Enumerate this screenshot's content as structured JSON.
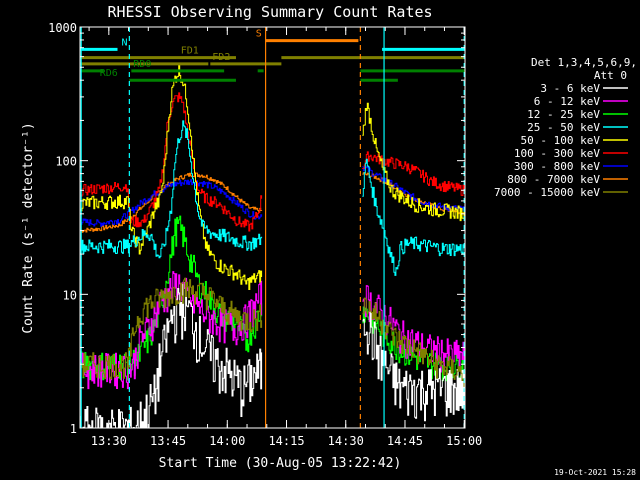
{
  "chart_data": {
    "type": "line",
    "title": "RHESSI Observing Summary Count Rates",
    "xlabel": "Start Time (30-Aug-05 13:22:42)",
    "ylabel": "Count Rate (s⁻¹ detector⁻¹)",
    "yscale": "log",
    "ylim": [
      1,
      1000
    ],
    "xlim_minutes": [
      0,
      97.5
    ],
    "x_start": "13:22:42",
    "x_ticks": [
      {
        "label": "13:30",
        "t": 7.3
      },
      {
        "label": "13:45",
        "t": 22.3
      },
      {
        "label": "14:00",
        "t": 37.3
      },
      {
        "label": "14:15",
        "t": 52.3
      },
      {
        "label": "14:30",
        "t": 67.3
      },
      {
        "label": "14:45",
        "t": 82.3
      },
      {
        "label": "15:00",
        "t": 97.3
      }
    ],
    "y_ticks": [
      {
        "label": "1",
        "v": 1
      },
      {
        "label": "10",
        "v": 10
      },
      {
        "label": "100",
        "v": 100
      },
      {
        "label": "1000",
        "v": 1000
      }
    ],
    "legend_header": [
      "Det 1,3,4,5,6,9,",
      "Att 0"
    ],
    "legend_position": "right",
    "footer_date": "19-Oct-2021 15:28",
    "data_gap_minutes": [
      46.5,
      71.0
    ],
    "series": [
      {
        "name": "3 - 6 keV",
        "color": "#ffffff",
        "t": [
          0,
          12,
          13.5,
          16,
          19,
          20,
          22,
          23,
          24,
          25,
          26,
          27,
          28,
          29,
          30,
          31,
          32,
          33,
          34,
          35,
          37,
          38,
          40,
          41,
          44,
          46
        ],
        "v": [
          1,
          1,
          1,
          1.2,
          1.8,
          3,
          5,
          6.5,
          7.5,
          8,
          8.5,
          8,
          7,
          6,
          5,
          4.5,
          4,
          3.5,
          3.3,
          3,
          2.8,
          2.5,
          2.2,
          2,
          2.5,
          2.8
        ]
      },
      {
        "name": "6 - 12 keV",
        "color": "#ff00ff",
        "t": [
          0,
          12,
          13.5,
          15,
          17,
          19,
          20,
          22,
          23,
          24,
          25,
          26,
          27,
          28,
          30,
          32,
          34,
          36,
          38,
          39,
          40,
          42,
          44,
          46
        ],
        "v": [
          2.8,
          2.8,
          3,
          4.5,
          5.5,
          7,
          8.5,
          10,
          11,
          12,
          12,
          11,
          10,
          9,
          8,
          7,
          6.5,
          6,
          6,
          5.5,
          6,
          6.5,
          8,
          10
        ]
      },
      {
        "name": "12 - 25 keV",
        "color": "#00ff00",
        "t": [
          0,
          12,
          13.5,
          15,
          17,
          19,
          21,
          23,
          24,
          25,
          26,
          27,
          28,
          29,
          30,
          32,
          34,
          36,
          38,
          40,
          42,
          44,
          46
        ],
        "v": [
          3,
          3,
          3.2,
          3.5,
          4.5,
          6,
          10,
          20,
          30,
          32,
          28,
          22,
          18,
          15,
          12,
          10,
          8,
          7,
          6.5,
          6,
          4.5,
          6,
          8
        ]
      },
      {
        "name": "25 - 50 keV",
        "color": "#00ffff",
        "t": [
          0,
          12,
          13.5,
          15,
          17,
          18,
          19,
          20,
          21,
          22,
          23,
          24,
          25,
          26,
          27,
          28,
          29,
          30,
          31,
          33,
          35,
          37,
          40,
          43,
          46
        ],
        "v": [
          23,
          23,
          25,
          27,
          29,
          27,
          22,
          19,
          22,
          30,
          45,
          100,
          150,
          180,
          155,
          100,
          60,
          40,
          32,
          29,
          28,
          27,
          25,
          24,
          26
        ]
      },
      {
        "name": "50 - 100 keV",
        "color": "#ffff00",
        "t": [
          0,
          12,
          13,
          15,
          17,
          19,
          20,
          21,
          22,
          23,
          24,
          25,
          26,
          27,
          28,
          29,
          30,
          31,
          32,
          33,
          34,
          36,
          38,
          40,
          42,
          44,
          46
        ],
        "v": [
          48,
          50,
          30,
          22,
          30,
          45,
          50,
          70,
          150,
          300,
          420,
          480,
          400,
          280,
          160,
          80,
          45,
          30,
          22,
          20,
          18,
          16,
          15,
          14,
          12,
          13,
          14
        ]
      },
      {
        "name": "100 - 300 keV",
        "color": "#ff0000",
        "t": [
          0,
          12,
          12.5,
          16,
          18,
          20,
          21,
          22,
          23,
          24,
          25,
          26,
          27,
          28,
          29,
          30,
          31,
          32,
          35,
          37,
          40,
          43,
          45,
          46
        ],
        "v": [
          60,
          65,
          35,
          35,
          45,
          60,
          90,
          180,
          250,
          290,
          300,
          270,
          180,
          120,
          80,
          60,
          55,
          52,
          48,
          42,
          35,
          32,
          40,
          55
        ]
      },
      {
        "name": "300 - 800 keV",
        "color": "#0000ff",
        "t": [
          0,
          5,
          10,
          13,
          16,
          19,
          22,
          25,
          28,
          31,
          34,
          37,
          40,
          43,
          45,
          46
        ],
        "v": [
          35,
          34,
          36,
          42,
          50,
          57,
          64,
          68,
          70,
          68,
          63,
          56,
          47,
          40,
          38,
          40
        ]
      },
      {
        "name": "800 - 7000 keV",
        "color": "#ff8000",
        "t": [
          0,
          5,
          10,
          13,
          16,
          19,
          22,
          25,
          28,
          31,
          34,
          37,
          40,
          43,
          46
        ],
        "v": [
          30,
          31,
          33,
          38,
          46,
          56,
          66,
          74,
          79,
          78,
          72,
          63,
          52,
          44,
          42
        ]
      },
      {
        "name": "7000 - 15000 keV",
        "color": "#808000",
        "t": [
          0,
          12,
          14,
          16,
          19,
          22,
          24,
          26,
          28,
          30,
          33,
          36,
          39,
          42,
          44,
          46
        ],
        "v": [
          3,
          3,
          6,
          8,
          9,
          10,
          10.5,
          11,
          11,
          10.5,
          9.5,
          8,
          7,
          6.5,
          6.5,
          7
        ]
      }
    ],
    "series_after_gap": [
      {
        "color": "#ffffff",
        "t": [
          71.5,
          73,
          75,
          77,
          79,
          81,
          83,
          85,
          87,
          90,
          94,
          97.5
        ],
        "v": [
          8,
          6,
          4,
          3,
          2.5,
          2,
          2,
          2,
          2,
          2,
          2,
          2
        ]
      },
      {
        "color": "#ff00ff",
        "t": [
          71.5,
          73,
          75,
          77,
          79,
          81,
          84,
          87,
          90,
          94,
          97.5
        ],
        "v": [
          10,
          9,
          8,
          7,
          6,
          5,
          4.5,
          4,
          3.8,
          3.5,
          3.5
        ]
      },
      {
        "color": "#00ff00",
        "t": [
          71.5,
          73,
          75,
          77,
          79,
          81,
          84,
          87,
          90,
          94,
          97.5
        ],
        "v": [
          8,
          7,
          6,
          5,
          4.5,
          4,
          3.5,
          3.2,
          3,
          3,
          3
        ]
      },
      {
        "color": "#00ffff",
        "t": [
          71.5,
          72.5,
          73.5,
          75,
          77,
          79,
          80,
          81,
          83,
          85,
          88,
          92,
          97.5
        ],
        "v": [
          60,
          100,
          70,
          45,
          30,
          18,
          15,
          22,
          24,
          24,
          23,
          22,
          22
        ]
      },
      {
        "color": "#ffff00",
        "t": [
          71.5,
          72.5,
          73.5,
          75,
          77,
          79,
          81,
          83,
          85,
          87,
          90,
          94,
          97.5
        ],
        "v": [
          150,
          270,
          200,
          120,
          80,
          60,
          55,
          50,
          47,
          45,
          43,
          42,
          40
        ]
      },
      {
        "color": "#ff0000",
        "t": [
          71.5,
          73,
          75,
          77,
          80,
          83,
          86,
          89,
          92,
          95,
          97.5
        ],
        "v": [
          90,
          110,
          105,
          100,
          95,
          90,
          80,
          70,
          65,
          62,
          60
        ]
      },
      {
        "color": "#0000ff",
        "t": [
          71.5,
          73,
          75,
          77,
          80,
          83,
          86,
          89,
          92,
          95,
          97.5
        ],
        "v": [
          90,
          85,
          78,
          72,
          64,
          56,
          50,
          47,
          45,
          44,
          43
        ]
      },
      {
        "color": "#ff8000",
        "t": [
          71.5,
          73,
          75,
          77,
          80,
          83,
          86,
          89,
          92,
          95,
          97.5
        ],
        "v": [
          80,
          78,
          75,
          70,
          62,
          55,
          50,
          46,
          43,
          42,
          40
        ]
      },
      {
        "color": "#808000",
        "t": [
          71.5,
          73,
          75,
          77,
          79,
          81,
          84,
          87,
          90,
          94,
          97.5
        ],
        "v": [
          9,
          8,
          7,
          6,
          5,
          4.5,
          4,
          3.5,
          3,
          2.8,
          2.5
        ]
      }
    ],
    "flag_bars": [
      {
        "label": "N",
        "color": "#00ffff",
        "v": 680,
        "segments": [
          [
            0,
            9.5
          ],
          [
            76.5,
            97.5
          ]
        ],
        "label_t": 10.5
      },
      {
        "label": "S",
        "color": "#ff8000",
        "v": 790,
        "segments": [
          [
            47,
            70.5
          ]
        ],
        "label_t": 44.5
      },
      {
        "label": "FD1",
        "color": "#808000",
        "v": 590,
        "segments": [
          [
            0,
            39.5
          ],
          [
            51,
            97.5
          ]
        ],
        "label_t": 25.5
      },
      {
        "label": "FD2",
        "color": "#808000",
        "v": 530,
        "segments": [
          [
            0,
            32.5
          ],
          [
            33,
            51
          ]
        ],
        "label_t": 33.5
      },
      {
        "label": "RD0",
        "color": "#008000",
        "v": 470,
        "segments": [
          [
            0,
            6
          ],
          [
            13,
            36.5
          ],
          [
            45,
            46.5
          ],
          [
            71,
            97.5
          ]
        ],
        "label_t": 13.5
      },
      {
        "label": "RD6",
        "color": "#008000",
        "v": 400,
        "segments": [
          [
            12.5,
            39.5
          ],
          [
            71,
            80.5
          ]
        ],
        "label_t": 5
      }
    ],
    "vertical_markers": [
      {
        "t": 0.3,
        "color": "#00ffff",
        "style": "solid"
      },
      {
        "t": 12.5,
        "color": "#00ffff",
        "style": "dashed"
      },
      {
        "t": 47,
        "color": "#ff8000",
        "style": "solid"
      },
      {
        "t": 71,
        "color": "#ff8000",
        "style": "dashed"
      },
      {
        "t": 77,
        "color": "#00ffff",
        "style": "solid"
      },
      {
        "t": 97.3,
        "color": "#00ffff",
        "style": "dashed"
      }
    ]
  }
}
